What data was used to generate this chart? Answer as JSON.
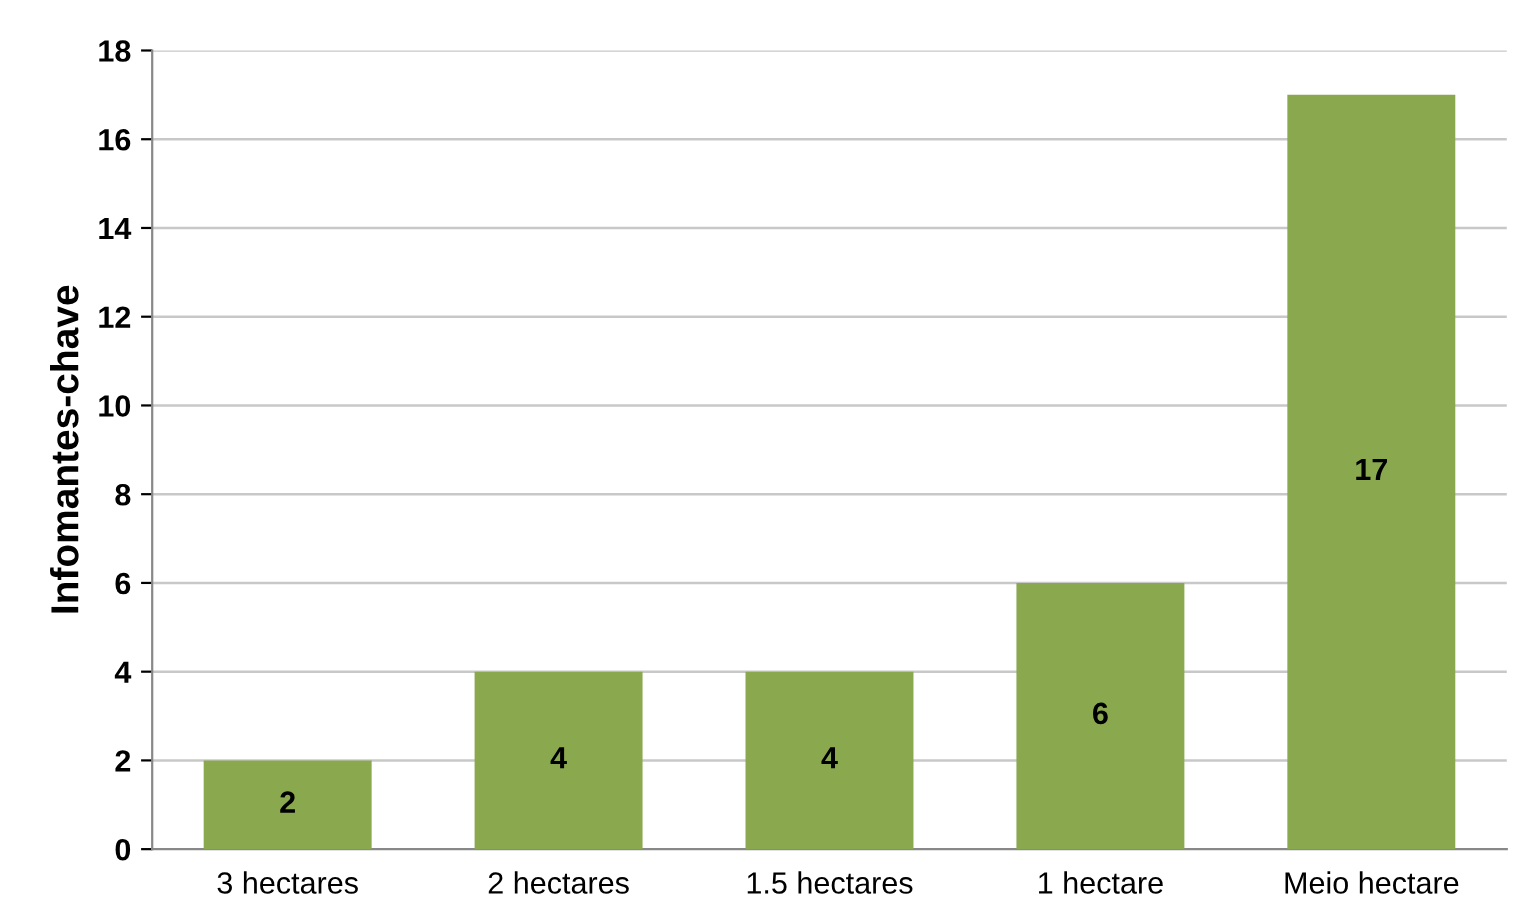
{
  "chart_data": {
    "type": "bar",
    "ylabel": "Infomantes-chave",
    "categories": [
      "3 hectares",
      "2 hectares",
      "1.5 hectares",
      "1 hectare",
      "Meio hectare"
    ],
    "values": [
      2,
      4,
      4,
      6,
      17
    ],
    "color": "#8aa94f",
    "ylim": [
      0,
      18
    ],
    "yticks": [
      0,
      2,
      4,
      6,
      8,
      10,
      12,
      14,
      16,
      18
    ],
    "grid": "y",
    "data_labels": true
  }
}
